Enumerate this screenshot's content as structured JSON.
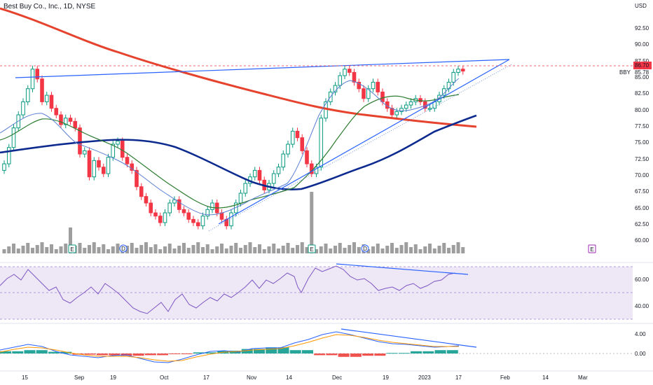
{
  "header": {
    "title": "Best Buy Co., Inc., 1D, NYSE",
    "currency": "USD"
  },
  "price_panel": {
    "y_ticks": [
      "92.50",
      "90.00",
      "87.50",
      "85.00",
      "82.50",
      "80.00",
      "77.50",
      "75.00",
      "72.50",
      "70.00",
      "67.50",
      "65.00",
      "62.50",
      "60.00"
    ],
    "last_price_badge": "86.70",
    "alert_label": "BBY",
    "alert_value": "85.78",
    "event_markers": [
      {
        "label": "E",
        "color": "#089981"
      },
      {
        "label": "D",
        "color": "#2962ff"
      },
      {
        "label": "E",
        "color": "#089981"
      },
      {
        "label": "D",
        "color": "#2962ff"
      },
      {
        "label": "E",
        "color": "#9c27b0"
      }
    ]
  },
  "rsi_panel": {
    "y_ticks": [
      "60.00",
      "40.00"
    ]
  },
  "macd_panel": {
    "y_ticks": [
      "4.00",
      "0.00"
    ]
  },
  "x_axis": {
    "labels": [
      "15",
      "Sep",
      "19",
      "Oct",
      "17",
      "Nov",
      "14",
      "Dec",
      "19",
      "2023",
      "17",
      "Feb",
      "14",
      "Mar"
    ]
  },
  "colors": {
    "up": "#089981",
    "down": "#f23645",
    "ma200": "#e5432e",
    "ma50": "#0d2a8f",
    "ma20": "#2e7d32",
    "ma10": "#5b7fd1",
    "trend": "#2962ff",
    "rsi": "#7e57c2"
  },
  "chart_data": [
    {
      "type": "candlestick",
      "title": "Best Buy Co., Inc., 1D, NYSE",
      "ylim": [
        58.5,
        95
      ],
      "series": [
        {
          "name": "price",
          "values": [
            72,
            74.5,
            77.5,
            79.5,
            81.5,
            83.5,
            86.5,
            85,
            81.5,
            82.5,
            80.5,
            79.5,
            78,
            79,
            78.5,
            77.5,
            73.5,
            74,
            70,
            72.5,
            71.5,
            70.5,
            73,
            75,
            75.5,
            73,
            72,
            71,
            68.5,
            67,
            66,
            64.5,
            64,
            63,
            64.5,
            66,
            66.5,
            65,
            64.5,
            63.5,
            63,
            62.5,
            64,
            65,
            66,
            64.5,
            63.5,
            62.5,
            64.5,
            66,
            67.5,
            69,
            70,
            71,
            69.5,
            68,
            69,
            70.5,
            71.5,
            73.5,
            75,
            77,
            76,
            74,
            72,
            70.5,
            71.5,
            79,
            81.5,
            83,
            84,
            85.5,
            86.5,
            86,
            84.5,
            83.5,
            82,
            83.5,
            84.5,
            83,
            81.5,
            80.5,
            79.5,
            80,
            80.5,
            81,
            81.5,
            82,
            81.5,
            80.5,
            80.5,
            81.5,
            82.5,
            83.5,
            84.5,
            86,
            86.5,
            86.2
          ]
        },
        {
          "name": "MA 200",
          "values": [
            95,
            94,
            92,
            90,
            87.5,
            85,
            82.8,
            80.9,
            79.7,
            79,
            78.5,
            78
          ]
        },
        {
          "name": "MA 50",
          "values": [
            74,
            74.5,
            75.5,
            75.5,
            74.5,
            73,
            71,
            69.5,
            68,
            67.5,
            67.5,
            68,
            70,
            73,
            75,
            77,
            79
          ]
        }
      ]
    },
    {
      "type": "area",
      "title": "RSI",
      "ylim": [
        30,
        75
      ],
      "series": [
        {
          "name": "RSI",
          "values": [
            50,
            57,
            62,
            66,
            58,
            52,
            48,
            44,
            50,
            56,
            52,
            46,
            42,
            50,
            54,
            58,
            56,
            64,
            70,
            68,
            62,
            58,
            54,
            56,
            60,
            64,
            67
          ]
        }
      ]
    },
    {
      "type": "bar",
      "title": "MACD",
      "ylim": [
        -2,
        5.5
      ],
      "series": [
        {
          "name": "histogram",
          "values": [
            0.4,
            0.6,
            0.3,
            -0.2,
            -0.3,
            -0.4,
            -0.3,
            -0.1,
            0.2,
            0.5,
            0.8,
            1.1,
            0.6,
            -0.3,
            -0.6,
            -0.4,
            0.1,
            0.4,
            0.6
          ]
        }
      ]
    }
  ]
}
